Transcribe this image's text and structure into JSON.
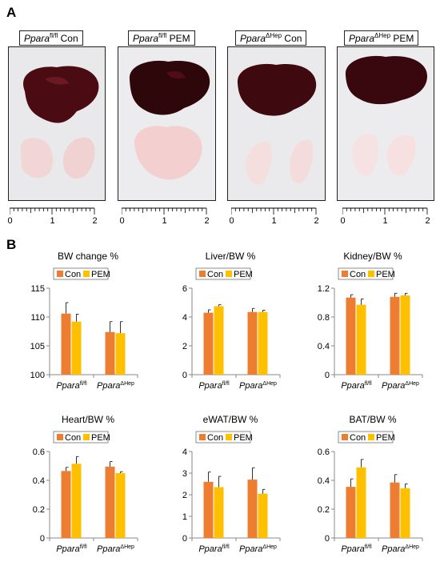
{
  "panel_a": {
    "letter": "A",
    "photos": [
      {
        "gene": "Ppara",
        "superscript": "fl/fl",
        "condition": "Con"
      },
      {
        "gene": "Ppara",
        "superscript": "fl/fl",
        "condition": "PEM"
      },
      {
        "gene": "Ppara",
        "superscript": "ΔHep",
        "condition": "Con"
      },
      {
        "gene": "Ppara",
        "superscript": "ΔHep",
        "condition": "PEM"
      }
    ],
    "ruler_labels": [
      "0",
      "1",
      "2"
    ]
  },
  "panel_b": {
    "letter": "B",
    "legend": [
      "Con",
      "PEM"
    ],
    "colors": {
      "con": "#ED7D31",
      "pem": "#FFC000"
    },
    "x_group_gene": "Ppara",
    "x_group_superscripts": [
      "fl/fl",
      "ΔHep"
    ]
  },
  "chart_data": [
    {
      "type": "bar",
      "title": "BW change %",
      "categories": [
        "Ppara fl/fl",
        "Ppara ΔHep"
      ],
      "series": [
        {
          "name": "Con",
          "values": [
            110.6,
            107.4
          ],
          "errors": [
            1.9,
            1.8
          ]
        },
        {
          "name": "PEM",
          "values": [
            109.2,
            107.2
          ],
          "errors": [
            1.3,
            2.0
          ]
        }
      ],
      "ylim": [
        100,
        115
      ],
      "yticks": [
        "100",
        "105",
        "110",
        "115"
      ],
      "legend": "top"
    },
    {
      "type": "bar",
      "title": "Liver/BW %",
      "categories": [
        "Ppara fl/fl",
        "Ppara ΔHep"
      ],
      "series": [
        {
          "name": "Con",
          "values": [
            4.3,
            4.35
          ],
          "errors": [
            0.2,
            0.25
          ]
        },
        {
          "name": "PEM",
          "values": [
            4.75,
            4.35
          ],
          "errors": [
            0.1,
            0.12
          ]
        }
      ],
      "ylim": [
        0,
        6
      ],
      "yticks": [
        "0",
        "2",
        "4",
        "6"
      ],
      "legend": "top"
    },
    {
      "type": "bar",
      "title": "Kidney/BW %",
      "categories": [
        "Ppara fl/fl",
        "Ppara ΔHep"
      ],
      "series": [
        {
          "name": "Con",
          "values": [
            1.07,
            1.08
          ],
          "errors": [
            0.04,
            0.05
          ]
        },
        {
          "name": "PEM",
          "values": [
            0.97,
            1.1
          ],
          "errors": [
            0.08,
            0.03
          ]
        }
      ],
      "ylim": [
        0,
        1.2
      ],
      "yticks": [
        "0",
        "0.4",
        "0.8",
        "1.2"
      ],
      "legend": "top"
    },
    {
      "type": "bar",
      "title": "Heart/BW %",
      "categories": [
        "Ppara fl/fl",
        "Ppara ΔHep"
      ],
      "series": [
        {
          "name": "Con",
          "values": [
            0.465,
            0.495
          ],
          "errors": [
            0.025,
            0.035
          ]
        },
        {
          "name": "PEM",
          "values": [
            0.515,
            0.45
          ],
          "errors": [
            0.05,
            0.01
          ]
        }
      ],
      "ylim": [
        0,
        0.6
      ],
      "yticks": [
        "0",
        "0.2",
        "0.4",
        "0.6"
      ],
      "legend": "top"
    },
    {
      "type": "bar",
      "title": "eWAT/BW %",
      "categories": [
        "Ppara fl/fl",
        "Ppara ΔHep"
      ],
      "series": [
        {
          "name": "Con",
          "values": [
            2.6,
            2.7
          ],
          "errors": [
            0.45,
            0.55
          ]
        },
        {
          "name": "PEM",
          "values": [
            2.35,
            2.05
          ],
          "errors": [
            0.5,
            0.2
          ]
        }
      ],
      "ylim": [
        0,
        4
      ],
      "yticks": [
        "0",
        "1",
        "2",
        "3",
        "4"
      ],
      "legend": "top"
    },
    {
      "type": "bar",
      "title": "BAT/BW %",
      "categories": [
        "Ppara fl/fl",
        "Ppara ΔHep"
      ],
      "series": [
        {
          "name": "Con",
          "values": [
            0.355,
            0.385
          ],
          "errors": [
            0.055,
            0.055
          ]
        },
        {
          "name": "PEM",
          "values": [
            0.49,
            0.345
          ],
          "errors": [
            0.055,
            0.03
          ]
        }
      ],
      "ylim": [
        0,
        0.6
      ],
      "yticks": [
        "0",
        "0.2",
        "0.4",
        "0.6"
      ],
      "legend": "top"
    }
  ]
}
